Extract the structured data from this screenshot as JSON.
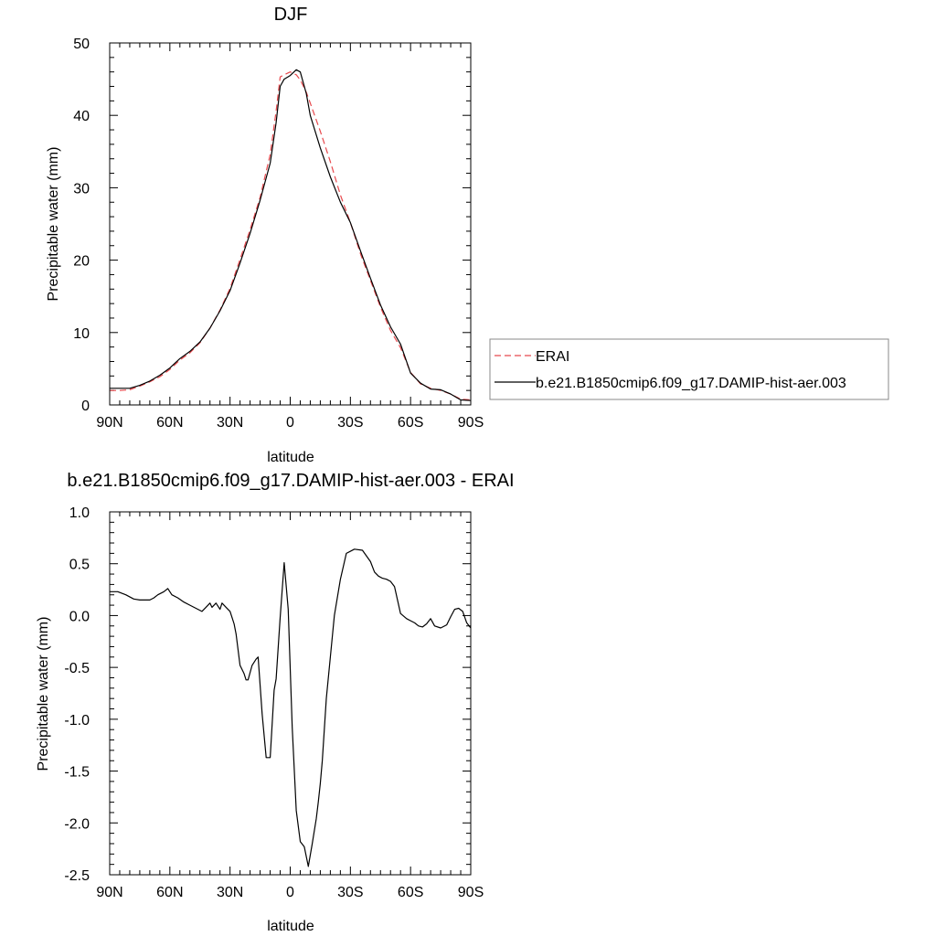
{
  "chart_data": [
    {
      "type": "line",
      "title": "DJF",
      "xlabel": "latitude",
      "ylabel": "Precipitable water (mm)",
      "xlim": [
        90,
        -90
      ],
      "ylim": [
        0,
        50
      ],
      "xticks": [
        90,
        60,
        30,
        0,
        -30,
        -60,
        -90
      ],
      "xtick_labels": [
        "90N",
        "60N",
        "30N",
        "0",
        "30S",
        "60S",
        "90S"
      ],
      "yticks": [
        0,
        10,
        20,
        30,
        40,
        50
      ],
      "ytick_labels": [
        "0",
        "10",
        "20",
        "30",
        "40",
        "50"
      ],
      "legend_position": "right",
      "series": [
        {
          "name": "ERAI",
          "color": "#e8494d",
          "dash": "dashed",
          "x": [
            90,
            85,
            80,
            75,
            70,
            65,
            60,
            55,
            50,
            45,
            40,
            35,
            30,
            25,
            20,
            15,
            10,
            7,
            5,
            3,
            0,
            -3,
            -5,
            -8,
            -10,
            -15,
            -20,
            -25,
            -30,
            -35,
            -40,
            -45,
            -50,
            -55,
            -60,
            -65,
            -70,
            -75,
            -80,
            -85,
            -90
          ],
          "y": [
            2.0,
            2.0,
            2.1,
            2.6,
            3.2,
            3.9,
            4.9,
            6.2,
            7.2,
            8.6,
            10.6,
            13.1,
            16.1,
            20.1,
            24.2,
            28.7,
            34.6,
            40.6,
            45.3,
            45.6,
            46.0,
            45.6,
            44.9,
            43.2,
            41.7,
            37.8,
            33.6,
            29.0,
            25.2,
            20.9,
            17.2,
            13.5,
            10.3,
            7.9,
            4.5,
            2.9,
            2.3,
            2.0,
            1.5,
            0.8,
            0.7
          ]
        },
        {
          "name": "b.e21.B1850cmip6.f09_g17.DAMIP-hist-aer.003",
          "color": "#000000",
          "dash": "solid",
          "x": [
            90,
            85,
            80,
            75,
            70,
            65,
            60,
            55,
            50,
            45,
            40,
            35,
            30,
            25,
            20,
            15,
            10,
            7,
            5,
            3,
            0,
            -3,
            -5,
            -8,
            -10,
            -15,
            -20,
            -25,
            -30,
            -35,
            -40,
            -45,
            -50,
            -55,
            -60,
            -65,
            -70,
            -75,
            -80,
            -85,
            -90
          ],
          "y": [
            2.3,
            2.3,
            2.3,
            2.7,
            3.3,
            4.1,
            5.1,
            6.4,
            7.4,
            8.7,
            10.6,
            13.0,
            15.8,
            19.6,
            23.7,
            28.3,
            33.4,
            39.0,
            44.0,
            45.0,
            45.5,
            46.3,
            46.0,
            43.0,
            40.0,
            35.5,
            31.5,
            28.0,
            25.2,
            21.3,
            17.5,
            13.8,
            10.8,
            8.4,
            4.4,
            3.0,
            2.2,
            2.1,
            1.5,
            0.7,
            0.6
          ]
        }
      ]
    },
    {
      "type": "line",
      "title": "b.e21.B1850cmip6.f09_g17.DAMIP-hist-aer.003 - ERAI",
      "xlabel": "latitude",
      "ylabel": "Precipitable water (mm)",
      "xlim": [
        90,
        -90
      ],
      "ylim": [
        -2.5,
        1.0
      ],
      "xticks": [
        90,
        60,
        30,
        0,
        -30,
        -60,
        -90
      ],
      "xtick_labels": [
        "90N",
        "60N",
        "30N",
        "0",
        "30S",
        "60S",
        "90S"
      ],
      "yticks": [
        1.0,
        0.5,
        0.0,
        -0.5,
        -1.0,
        -1.5,
        -2.0,
        -2.5
      ],
      "ytick_labels": [
        "1.0",
        "0.5",
        "0.0",
        "-0.5",
        "-1.0",
        "-1.5",
        "-2.0",
        "-2.5"
      ],
      "series": [
        {
          "color": "#000000",
          "dash": "solid",
          "x": [
            90,
            86,
            82,
            78,
            75,
            72,
            70,
            68,
            66,
            63,
            61,
            59,
            56,
            53,
            50,
            47,
            44,
            42,
            40,
            39,
            37,
            35,
            34,
            32,
            30,
            28,
            27,
            25,
            23,
            22,
            21,
            19,
            17,
            16,
            14,
            12,
            10,
            8,
            7,
            5,
            3,
            1,
            -1,
            -3,
            -5,
            -7,
            -9,
            -11,
            -13,
            -14,
            -15,
            -16,
            -17,
            -18,
            -20,
            -22,
            -25,
            -28,
            -32,
            -36,
            -40,
            -42,
            -44,
            -46,
            -48,
            -50,
            -52,
            -55,
            -58,
            -60,
            -62,
            -64,
            -66,
            -68,
            -70,
            -72,
            -75,
            -78,
            -80,
            -82,
            -84,
            -86,
            -88,
            -90
          ],
          "y": [
            0.23,
            0.23,
            0.2,
            0.16,
            0.15,
            0.15,
            0.15,
            0.17,
            0.2,
            0.23,
            0.26,
            0.2,
            0.17,
            0.13,
            0.1,
            0.07,
            0.04,
            0.08,
            0.12,
            0.08,
            0.12,
            0.06,
            0.12,
            0.08,
            0.04,
            -0.08,
            -0.18,
            -0.48,
            -0.56,
            -0.62,
            -0.62,
            -0.48,
            -0.42,
            -0.4,
            -0.95,
            -1.37,
            -1.37,
            -0.72,
            -0.61,
            -0.02,
            0.51,
            0.06,
            -1.08,
            -1.88,
            -2.18,
            -2.23,
            -2.42,
            -2.2,
            -1.96,
            -1.8,
            -1.62,
            -1.4,
            -1.1,
            -0.8,
            -0.4,
            0.0,
            0.35,
            0.6,
            0.64,
            0.63,
            0.52,
            0.42,
            0.38,
            0.36,
            0.35,
            0.33,
            0.28,
            0.02,
            -0.03,
            -0.05,
            -0.07,
            -0.1,
            -0.11,
            -0.08,
            -0.03,
            -0.1,
            -0.12,
            -0.09,
            -0.01,
            0.06,
            0.07,
            0.04,
            -0.07,
            -0.12
          ]
        }
      ]
    }
  ]
}
